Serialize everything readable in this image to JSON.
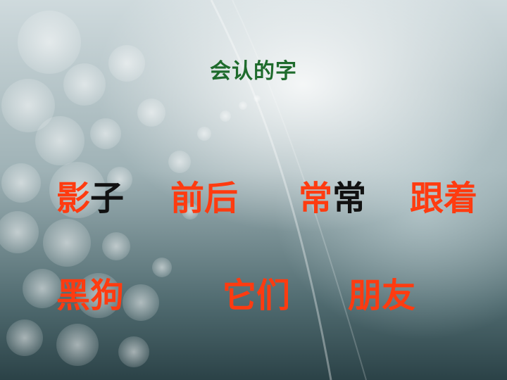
{
  "title": "会认的字",
  "colors": {
    "title": "#1e6b2c",
    "word": "#ff3b10",
    "black_char": "#111111"
  },
  "row1": [
    {
      "first": "影",
      "second": "子",
      "second_color": "black"
    },
    {
      "first": "前",
      "second": "后",
      "second_color": "red"
    },
    {
      "first": "常",
      "second": "常",
      "second_color": "black"
    },
    {
      "first": "跟",
      "second": "着",
      "second_color": "red"
    }
  ],
  "row2": [
    {
      "first": "黑",
      "second": "狗"
    },
    {
      "first": "它",
      "second": "们"
    },
    {
      "first": "朋",
      "second": "友"
    }
  ]
}
